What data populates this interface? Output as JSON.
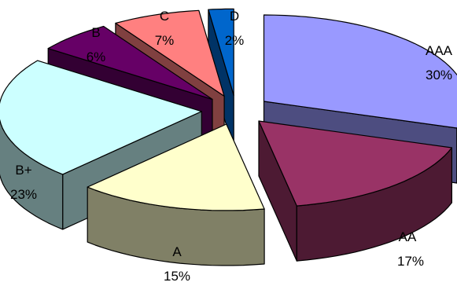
{
  "chart_data": {
    "type": "pie",
    "style": "3d-exploded",
    "slices": [
      {
        "label": "AAA",
        "value": 30,
        "value_label": "30%",
        "color": "#9999FF",
        "side_color": "#4D4D80"
      },
      {
        "label": "AA",
        "value": 17,
        "value_label": "17%",
        "color": "#993366",
        "side_color": "#4D1A33"
      },
      {
        "label": "A",
        "value": 15,
        "value_label": "15%",
        "color": "#FFFFCC",
        "side_color": "#808066"
      },
      {
        "label": "B+",
        "value": 23,
        "value_label": "23%",
        "color": "#CCFFFF",
        "side_color": "#668080"
      },
      {
        "label": "B",
        "value": 6,
        "value_label": "6%",
        "color": "#660066",
        "side_color": "#330033"
      },
      {
        "label": "C",
        "value": 7,
        "value_label": "7%",
        "color": "#FF8080",
        "side_color": "#804040"
      },
      {
        "label": "D",
        "value": 2,
        "value_label": "2%",
        "color": "#0066CC",
        "side_color": "#003366"
      }
    ],
    "legend": "none"
  }
}
